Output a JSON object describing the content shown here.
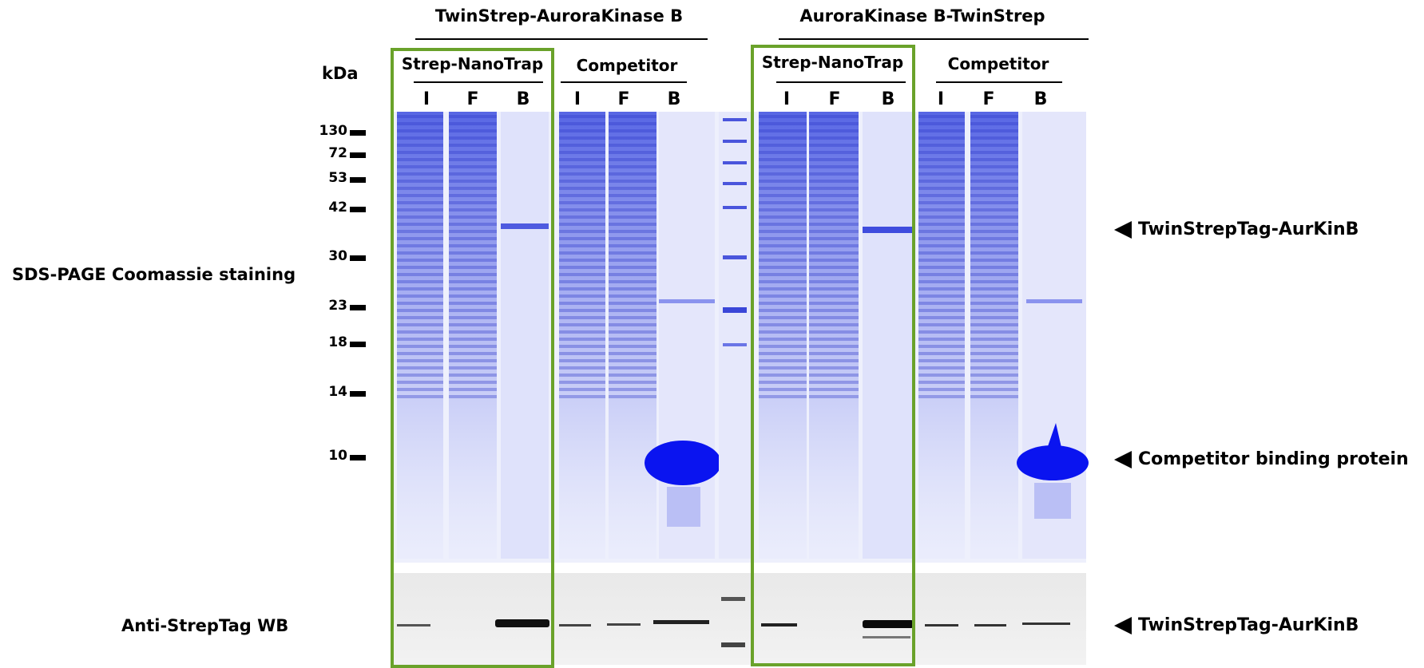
{
  "groups": [
    {
      "title": "TwinStrep-AuroraKinase  B"
    },
    {
      "title": "AuroraKinase  B-TwinStrep"
    }
  ],
  "sublabels": {
    "nanotrap": "Strep-NanoTrap",
    "competitor": "Competitor"
  },
  "lanes": [
    "I",
    "F",
    "B"
  ],
  "kda_label": "kDa",
  "markers": [
    "130",
    "72",
    "53",
    "42",
    "30",
    "23",
    "18",
    "14",
    "10"
  ],
  "left_labels": {
    "sds": "SDS-PAGE Coomassie staining",
    "wb": "Anti-StrepTag WB"
  },
  "annotations": {
    "target": "TwinStrepTag-AurKinB",
    "competitor_protein": "Competitor binding protein",
    "wb_target": "TwinStrepTag-AurKinB"
  },
  "colors": {
    "coomassie": "#3d4ee0",
    "highlight_box": "#6aa22a"
  }
}
